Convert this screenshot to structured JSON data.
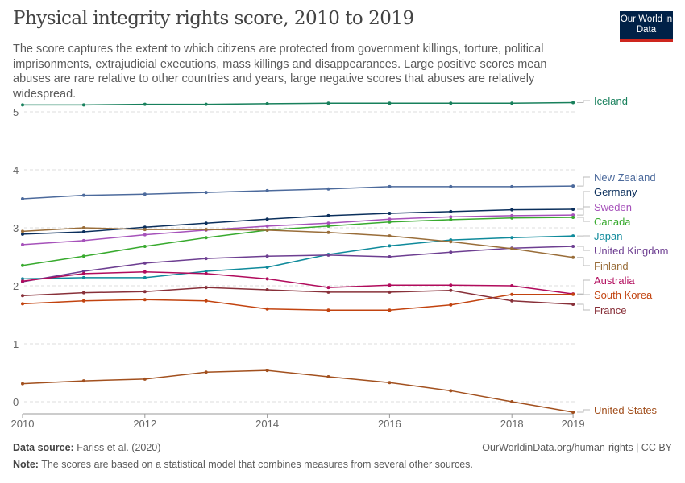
{
  "title": "Physical integrity rights score, 2010 to 2019",
  "subtitle": "The score captures the extent to which citizens are protected from government killings, torture, political imprisonments, extrajudicial executions, mass killings and disappearances. Large positive scores mean abuses are rare relative to other countries and years, large negative scores that abuses are relatively widespread.",
  "logo": "Our World in Data",
  "footer": {
    "source_label": "Data source:",
    "source": "Fariss et al. (2020)",
    "url": "OurWorldinData.org/human-rights | CC BY",
    "note_label": "Note:",
    "note": "The scores are based on a statistical model that combines measures from several other sources."
  },
  "chart_data": {
    "type": "line",
    "title": "Physical integrity rights score, 2010 to 2019",
    "x": [
      2010,
      2011,
      2012,
      2013,
      2014,
      2015,
      2016,
      2017,
      2018,
      2019
    ],
    "xticks": [
      "2010",
      "2012",
      "2014",
      "2016",
      "2018",
      "2019"
    ],
    "yticks": [
      "0",
      "1",
      "2",
      "3",
      "4",
      "5"
    ],
    "ylim": [
      -0.2,
      5.3
    ],
    "grid": true,
    "legend": "right",
    "series": [
      {
        "name": "Iceland",
        "color": "#18805c",
        "values": [
          5.12,
          5.12,
          5.13,
          5.13,
          5.14,
          5.15,
          5.15,
          5.15,
          5.15,
          5.16
        ]
      },
      {
        "name": "New Zealand",
        "color": "#4c6a9c",
        "values": [
          3.5,
          3.56,
          3.58,
          3.61,
          3.64,
          3.67,
          3.71,
          3.71,
          3.71,
          3.72
        ]
      },
      {
        "name": "Germany",
        "color": "#0b2f5c",
        "values": [
          2.89,
          2.93,
          3.01,
          3.08,
          3.15,
          3.21,
          3.25,
          3.28,
          3.31,
          3.32
        ]
      },
      {
        "name": "Sweden",
        "color": "#a652ba",
        "values": [
          2.71,
          2.78,
          2.88,
          2.96,
          3.03,
          3.08,
          3.15,
          3.19,
          3.21,
          3.22
        ]
      },
      {
        "name": "Canada",
        "color": "#38aa2e",
        "values": [
          2.35,
          2.51,
          2.68,
          2.83,
          2.96,
          3.03,
          3.1,
          3.14,
          3.17,
          3.18
        ]
      },
      {
        "name": "Japan",
        "color": "#0f8a9b",
        "values": [
          2.12,
          2.14,
          2.14,
          2.25,
          2.32,
          2.54,
          2.69,
          2.79,
          2.83,
          2.86
        ]
      },
      {
        "name": "United Kingdom",
        "color": "#6d3e91",
        "values": [
          2.07,
          2.25,
          2.39,
          2.47,
          2.51,
          2.53,
          2.5,
          2.58,
          2.65,
          2.68
        ]
      },
      {
        "name": "Finland",
        "color": "#996d39",
        "values": [
          2.94,
          3.0,
          2.97,
          2.97,
          2.96,
          2.92,
          2.86,
          2.76,
          2.64,
          2.49
        ]
      },
      {
        "name": "Australia",
        "color": "#b10b5c",
        "values": [
          2.08,
          2.21,
          2.24,
          2.21,
          2.12,
          1.97,
          2.01,
          2.01,
          2.0,
          1.86
        ]
      },
      {
        "name": "South Korea",
        "color": "#c2430f",
        "values": [
          1.69,
          1.74,
          1.76,
          1.74,
          1.6,
          1.58,
          1.58,
          1.67,
          1.85,
          1.85
        ]
      },
      {
        "name": "France",
        "color": "#883039",
        "values": [
          1.83,
          1.88,
          1.9,
          1.97,
          1.93,
          1.89,
          1.89,
          1.92,
          1.74,
          1.68
        ]
      },
      {
        "name": "United States",
        "color": "#a2501e",
        "values": [
          0.31,
          0.36,
          0.39,
          0.51,
          0.54,
          0.43,
          0.33,
          0.19,
          0.0,
          -0.18
        ]
      }
    ]
  }
}
